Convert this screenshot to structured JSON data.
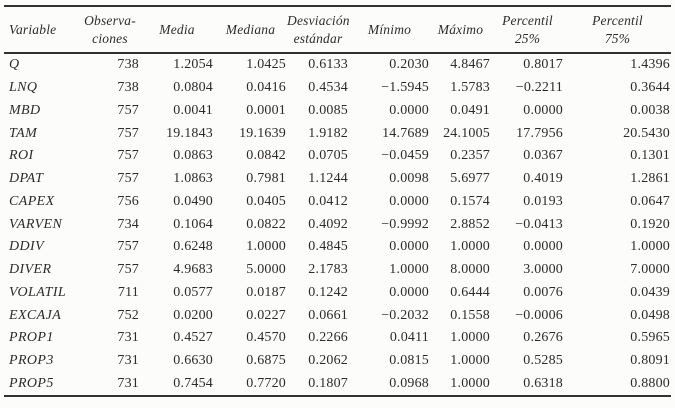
{
  "page": {
    "background_color": "#fcfcfb",
    "text_color": "#2d2c2a",
    "rule_color": "#32312f"
  },
  "table": {
    "headers": [
      {
        "label": "Variable"
      },
      {
        "label": "Observa-\nciones"
      },
      {
        "label": "Media"
      },
      {
        "label": "Mediana"
      },
      {
        "label": "Desviación\nestándar"
      },
      {
        "label": "Mínimo"
      },
      {
        "label": "Máximo"
      },
      {
        "label": "Percentil\n25%"
      },
      {
        "label": "Percentil\n75%"
      }
    ]
  },
  "chart_data": {
    "type": "table",
    "columns": [
      "Variable",
      "Observaciones",
      "Media",
      "Mediana",
      "Desviación estándar",
      "Mínimo",
      "Máximo",
      "Percentil 25%",
      "Percentil 75%"
    ],
    "rows": [
      [
        "Q",
        "738",
        "1.2054",
        "1.0425",
        "0.6133",
        "0.2030",
        "4.8467",
        "0.8017",
        "1.4396"
      ],
      [
        "LNQ",
        "738",
        "0.0804",
        "0.0416",
        "0.4534",
        "−1.5945",
        "1.5783",
        "−0.2211",
        "0.3644"
      ],
      [
        "MBD",
        "757",
        "0.0041",
        "0.0001",
        "0.0085",
        "0.0000",
        "0.0491",
        "0.0000",
        "0.0038"
      ],
      [
        "TAM",
        "757",
        "19.1843",
        "19.1639",
        "1.9182",
        "14.7689",
        "24.1005",
        "17.7956",
        "20.5430"
      ],
      [
        "ROI",
        "757",
        "0.0863",
        "0.0842",
        "0.0705",
        "−0.0459",
        "0.2357",
        "0.0367",
        "0.1301"
      ],
      [
        "DPAT",
        "757",
        "1.0863",
        "0.7981",
        "1.1244",
        "0.0098",
        "5.6977",
        "0.4019",
        "1.2861"
      ],
      [
        "CAPEX",
        "756",
        "0.0490",
        "0.0405",
        "0.0412",
        "0.0000",
        "0.1574",
        "0.0193",
        "0.0647"
      ],
      [
        "VARVEN",
        "734",
        "0.1064",
        "0.0822",
        "0.4092",
        "−0.9992",
        "2.8852",
        "−0.0413",
        "0.1920"
      ],
      [
        "DDIV",
        "757",
        "0.6248",
        "1.0000",
        "0.4845",
        "0.0000",
        "1.0000",
        "0.0000",
        "1.0000"
      ],
      [
        "DIVER",
        "757",
        "4.9683",
        "5.0000",
        "2.1783",
        "1.0000",
        "8.0000",
        "3.0000",
        "7.0000"
      ],
      [
        "VOLATIL",
        "711",
        "0.0577",
        "0.0187",
        "0.1242",
        "0.0000",
        "0.6444",
        "0.0076",
        "0.0439"
      ],
      [
        "EXCAJA",
        "752",
        "0.0200",
        "0.0227",
        "0.0661",
        "−0.2032",
        "0.1558",
        "−0.0006",
        "0.0498"
      ],
      [
        "PROP1",
        "731",
        "0.4527",
        "0.4570",
        "0.2266",
        "0.0411",
        "1.0000",
        "0.2676",
        "0.5965"
      ],
      [
        "PROP3",
        "731",
        "0.6630",
        "0.6875",
        "0.2062",
        "0.0815",
        "1.0000",
        "0.5285",
        "0.8091"
      ],
      [
        "PROP5",
        "731",
        "0.7454",
        "0.7720",
        "0.1807",
        "0.0968",
        "1.0000",
        "0.6318",
        "0.8800"
      ]
    ]
  }
}
